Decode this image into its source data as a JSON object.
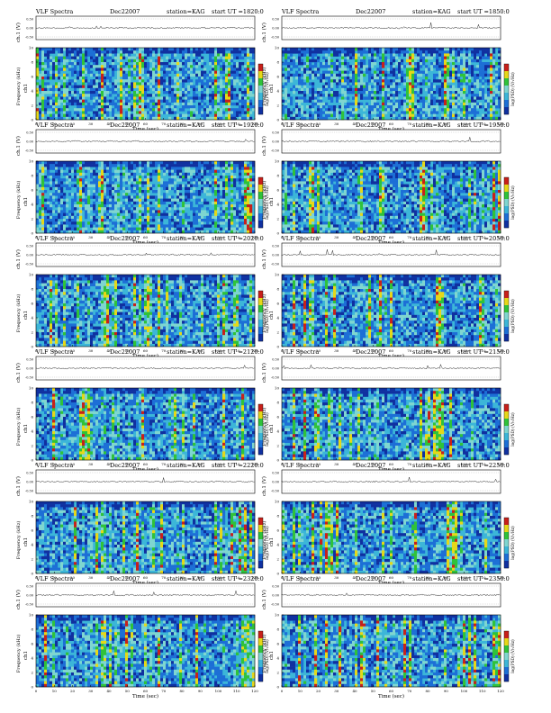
{
  "document": {
    "common": {
      "title": "VLF Spectra",
      "date": "Dec22007",
      "station": "station=KAG",
      "ut_prefix": "start  UT  =",
      "ch_label": "ch.1 (V)",
      "ylabel": "Frequency (kHz)",
      "ch_label_upper": "ch1",
      "xlabel": "Time (sec)",
      "colorbar_label": "log(PSD) (V/√Hz)"
    },
    "colors": {
      "dark_blue": "#1030a0",
      "blue": "#1d6fd6",
      "cyan": "#3cb6d8",
      "light_cyan": "#7fd6d0",
      "green": "#2fc23a",
      "yellow": "#e6d818",
      "red": "#c8201a"
    }
  },
  "chart_data": [
    {
      "type": "heatmap",
      "title": "VLF Spectra",
      "date": "Dec22007",
      "station": "station=KAG",
      "start_ut": "1820:0",
      "xlim": [
        0,
        120
      ],
      "ylim": [
        0,
        10
      ],
      "ch_ylim": [
        -0.5,
        0.5
      ],
      "xticks": [
        0,
        10,
        20,
        30,
        40,
        50,
        60,
        70,
        80,
        90,
        100,
        110,
        120
      ],
      "yticks": [
        0,
        2,
        4,
        6,
        8,
        10
      ],
      "ch_ticks": [
        "0.50",
        "0.00",
        "-0.50"
      ]
    },
    {
      "type": "heatmap",
      "title": "VLF Spectra",
      "date": "Dec22007",
      "station": "station=KAG",
      "start_ut": "1850:0",
      "xlim": [
        0,
        120
      ],
      "ylim": [
        0,
        10
      ],
      "ch_ylim": [
        -0.5,
        0.5
      ],
      "xticks": [
        0,
        10,
        20,
        30,
        40,
        50,
        60,
        70,
        80,
        90,
        100,
        110,
        120
      ],
      "yticks": [
        0,
        2,
        4,
        6,
        8,
        10
      ],
      "ch_ticks": [
        "0.50",
        "0.00",
        "-0.50"
      ]
    },
    {
      "type": "heatmap",
      "title": "VLF Spectra",
      "date": "Dec22007",
      "station": "station=KAG",
      "start_ut": "1920:0",
      "xlim": [
        0,
        120
      ],
      "ylim": [
        0,
        10
      ],
      "ch_ylim": [
        -0.5,
        0.5
      ],
      "xticks": [
        0,
        10,
        20,
        30,
        40,
        50,
        60,
        70,
        80,
        90,
        100,
        110,
        120
      ],
      "yticks": [
        0,
        2,
        4,
        6,
        8,
        10
      ],
      "ch_ticks": [
        "0.50",
        "0.00",
        "-0.50"
      ]
    },
    {
      "type": "heatmap",
      "title": "VLF Spectra",
      "date": "Dec22007",
      "station": "station=KAG",
      "start_ut": "1950:0",
      "xlim": [
        0,
        120
      ],
      "ylim": [
        0,
        10
      ],
      "ch_ylim": [
        -0.5,
        0.5
      ],
      "xticks": [
        0,
        10,
        20,
        30,
        40,
        50,
        60,
        70,
        80,
        90,
        100,
        110,
        120
      ],
      "yticks": [
        0,
        2,
        4,
        6,
        8,
        10
      ],
      "ch_ticks": [
        "0.50",
        "0.00",
        "-0.50"
      ]
    },
    {
      "type": "heatmap",
      "title": "VLF Spectra",
      "date": "Dec22007",
      "station": "station=KAG",
      "start_ut": "2020:0",
      "xlim": [
        0,
        120
      ],
      "ylim": [
        0,
        10
      ],
      "ch_ylim": [
        -0.5,
        0.5
      ],
      "xticks": [
        0,
        10,
        20,
        30,
        40,
        50,
        60,
        70,
        80,
        90,
        100,
        110,
        120
      ],
      "yticks": [
        0,
        2,
        4,
        6,
        8,
        10
      ],
      "ch_ticks": [
        "0.50",
        "0.00",
        "-0.50"
      ]
    },
    {
      "type": "heatmap",
      "title": "VLF Spectra",
      "date": "Dec22007",
      "station": "station=KAG",
      "start_ut": "2050:0",
      "xlim": [
        0,
        120
      ],
      "ylim": [
        0,
        10
      ],
      "ch_ylim": [
        -0.5,
        0.5
      ],
      "xticks": [
        0,
        10,
        20,
        30,
        40,
        50,
        60,
        70,
        80,
        90,
        100,
        110,
        120
      ],
      "yticks": [
        0,
        2,
        4,
        6,
        8,
        10
      ],
      "ch_ticks": [
        "0.50",
        "0.00",
        "-0.50"
      ]
    },
    {
      "type": "heatmap",
      "title": "VLF Spectra",
      "date": "Dec22007",
      "station": "station=KAG",
      "start_ut": "2120:0",
      "xlim": [
        0,
        120
      ],
      "ylim": [
        0,
        10
      ],
      "ch_ylim": [
        -0.5,
        0.5
      ],
      "xticks": [
        0,
        10,
        20,
        30,
        40,
        50,
        60,
        70,
        80,
        90,
        100,
        110,
        120
      ],
      "yticks": [
        0,
        2,
        4,
        6,
        8,
        10
      ],
      "ch_ticks": [
        "0.50",
        "0.00",
        "-0.50"
      ]
    },
    {
      "type": "heatmap",
      "title": "VLF Spectra",
      "date": "Dec22007",
      "station": "station=KAG",
      "start_ut": "2150:0",
      "xlim": [
        0,
        120
      ],
      "ylim": [
        0,
        10
      ],
      "ch_ylim": [
        -0.5,
        0.5
      ],
      "xticks": [
        0,
        10,
        20,
        30,
        40,
        50,
        60,
        70,
        80,
        90,
        100,
        110,
        120
      ],
      "yticks": [
        0,
        2,
        4,
        6,
        8,
        10
      ],
      "ch_ticks": [
        "0.50",
        "0.00",
        "-0.50"
      ]
    },
    {
      "type": "heatmap",
      "title": "VLF Spectra",
      "date": "Dec22007",
      "station": "station=KAG",
      "start_ut": "2220:0",
      "xlim": [
        0,
        120
      ],
      "ylim": [
        0,
        10
      ],
      "ch_ylim": [
        -0.5,
        0.5
      ],
      "xticks": [
        0,
        10,
        20,
        30,
        40,
        50,
        60,
        70,
        80,
        90,
        100,
        110,
        120
      ],
      "yticks": [
        0,
        2,
        4,
        6,
        8,
        10
      ],
      "ch_ticks": [
        "0.50",
        "0.00",
        "-0.50"
      ]
    },
    {
      "type": "heatmap",
      "title": "VLF Spectra",
      "date": "Dec22007",
      "station": "station=KAG",
      "start_ut": "2250:0",
      "xlim": [
        0,
        120
      ],
      "ylim": [
        0,
        10
      ],
      "ch_ylim": [
        -0.5,
        0.5
      ],
      "xticks": [
        0,
        10,
        20,
        30,
        40,
        50,
        60,
        70,
        80,
        90,
        100,
        110,
        120
      ],
      "yticks": [
        0,
        2,
        4,
        6,
        8,
        10
      ],
      "ch_ticks": [
        "0.50",
        "0.00",
        "-0.50"
      ]
    },
    {
      "type": "heatmap",
      "title": "VLF Spectra",
      "date": "Dec22007",
      "station": "station=KAG",
      "start_ut": "2320:0",
      "xlim": [
        0,
        120
      ],
      "ylim": [
        0,
        10
      ],
      "ch_ylim": [
        -0.5,
        0.5
      ],
      "xticks": [
        0,
        10,
        20,
        30,
        40,
        50,
        60,
        70,
        80,
        90,
        100,
        110,
        120
      ],
      "yticks": [
        0,
        2,
        4,
        6,
        8,
        10
      ],
      "ch_ticks": [
        "0.50",
        "0.00",
        "-0.50"
      ]
    },
    {
      "type": "heatmap",
      "title": "VLF Spectra",
      "date": "Dec22007",
      "station": "station=KAG",
      "start_ut": "2350:0",
      "xlim": [
        0,
        120
      ],
      "ylim": [
        0,
        10
      ],
      "ch_ylim": [
        -0.5,
        0.5
      ],
      "xticks": [
        0,
        10,
        20,
        30,
        40,
        50,
        60,
        70,
        80,
        90,
        100,
        110,
        120
      ],
      "yticks": [
        0,
        2,
        4,
        6,
        8,
        10
      ],
      "ch_ticks": [
        "0.50",
        "0.00",
        "-0.50"
      ]
    }
  ]
}
